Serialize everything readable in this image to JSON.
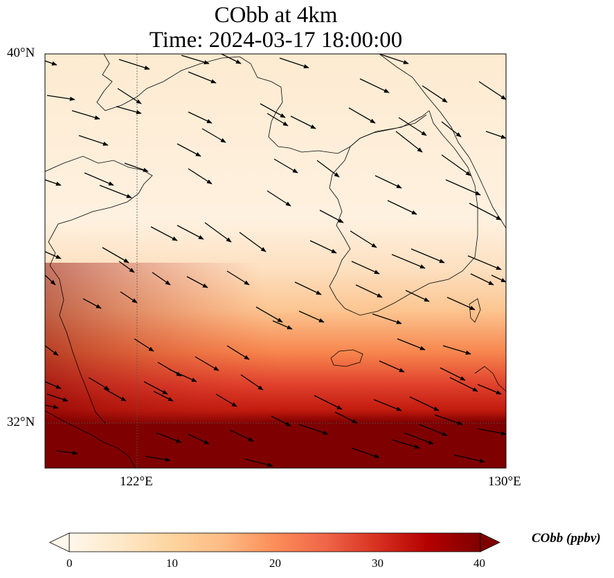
{
  "title": "CObb at 4km",
  "subtitle": "Time: 2024-03-17 18:00:00",
  "axes": {
    "lat_ticks": [
      "40°N",
      "32°N"
    ],
    "lon_ticks": [
      "122°E",
      "130°E"
    ],
    "extent": {
      "lon_min": 120,
      "lon_max": 130,
      "lat_min": 31,
      "lat_max": 40
    }
  },
  "colorbar": {
    "label": "CObb (ppbv)",
    "ticks": [
      "0",
      "10",
      "20",
      "30",
      "40"
    ],
    "range": [
      0,
      40
    ],
    "extend": "both",
    "colormap": "OrRd",
    "colors": [
      "#fff7ec",
      "#fee8c8",
      "#fdd49e",
      "#fdbb84",
      "#fc8d59",
      "#ef6548",
      "#d7301f",
      "#b30000",
      "#7f0000"
    ]
  },
  "chart_data": {
    "type": "heatmap",
    "variable": "CObb",
    "units": "ppbv",
    "level": "4km",
    "time": "2024-03-17 18:00:00",
    "overlay": "wind vectors, predominantly from WNW toward ESE",
    "field_by_latitude": [
      {
        "lat": 40.0,
        "value": 2
      },
      {
        "lat": 37.0,
        "value": 2
      },
      {
        "lat": 35.0,
        "value": 5
      },
      {
        "lat": 34.0,
        "value": 12
      },
      {
        "lat": 33.0,
        "value": 24
      },
      {
        "lat": 32.5,
        "value": 33
      },
      {
        "lat": 32.0,
        "value": 40
      },
      {
        "lat": 31.0,
        "value": 40
      }
    ]
  }
}
